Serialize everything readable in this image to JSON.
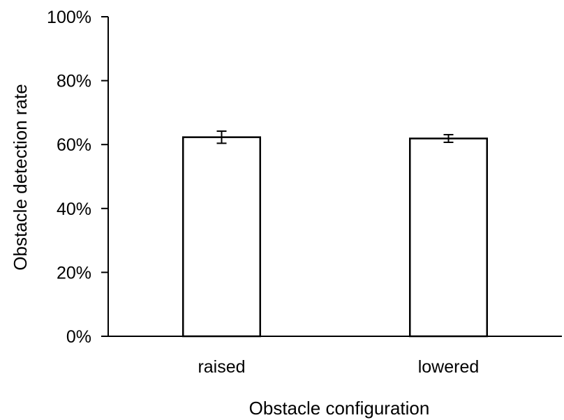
{
  "chart_data": {
    "type": "bar",
    "categories": [
      "raised",
      "lowered"
    ],
    "values": [
      62.3,
      61.9
    ],
    "error": [
      1.9,
      1.2
    ],
    "ylabel": "Obstacle detection rate",
    "xlabel": "Obstacle configuration",
    "ylim": [
      0,
      100
    ],
    "yticks": [
      0,
      20,
      40,
      60,
      80,
      100
    ],
    "ytick_labels": [
      "0%",
      "20%",
      "40%",
      "60%",
      "80%",
      "100%"
    ],
    "grid": false,
    "legend": "none",
    "colors": {
      "bar_fill": "#ffffff",
      "bar_stroke": "#000000",
      "axis": "#000000"
    }
  }
}
